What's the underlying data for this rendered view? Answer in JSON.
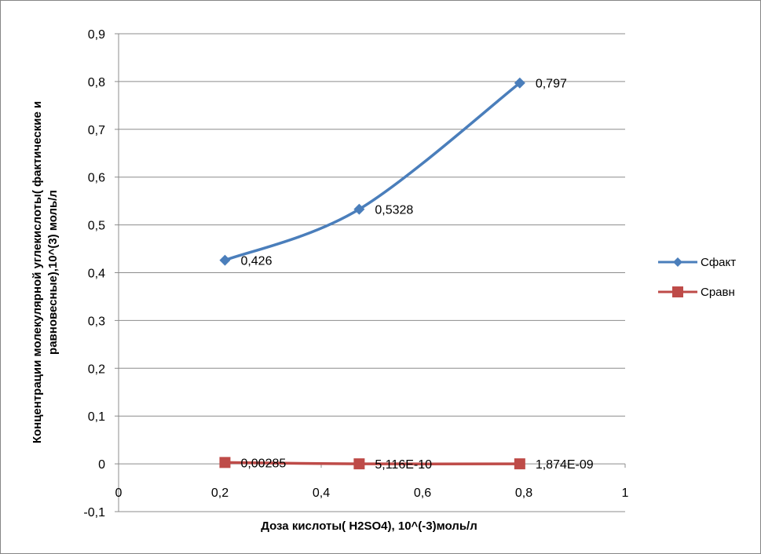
{
  "chart_data": {
    "type": "scatter",
    "xlabel": "Доза  кислоты( H2SO4), 10^(-3)моль/л",
    "ylabel_lines": [
      "Концентрации молекулярной углекислоты( фактические и",
      "равновесные),10^(3) моль/л"
    ],
    "xlim": [
      0,
      1
    ],
    "ylim": [
      -0.1,
      0.9
    ],
    "x_ticks": [
      0,
      0.2,
      0.4,
      0.6,
      0.8,
      1
    ],
    "x_tick_labels": [
      "0",
      "0,2",
      "0,4",
      "0,6",
      "0,8",
      "1"
    ],
    "y_ticks": [
      -0.1,
      0,
      0.1,
      0.2,
      0.3,
      0.4,
      0.5,
      0.6,
      0.7,
      0.8,
      0.9
    ],
    "y_tick_labels": [
      "-0,1",
      "0",
      "0,1",
      "0,2",
      "0,3",
      "0,4",
      "0,5",
      "0,6",
      "0,7",
      "0,8",
      "0,9"
    ],
    "grid": true,
    "legend_position": "right",
    "smooth_lines": true,
    "series": [
      {
        "name": "Cфакт",
        "color": "#4a7ebb",
        "marker": "diamond",
        "x": [
          0.21,
          0.475,
          0.792
        ],
        "y": [
          0.426,
          0.5328,
          0.797
        ],
        "labels": [
          "0,426",
          "0,5328",
          "0,797"
        ]
      },
      {
        "name": "Cравн",
        "color": "#be4b48",
        "marker": "square",
        "x": [
          0.21,
          0.475,
          0.792
        ],
        "y": [
          0.00285,
          5.116e-10,
          1.874e-09
        ],
        "labels": [
          "0,00285",
          "5,116E-10",
          "1,874E-09"
        ]
      }
    ]
  }
}
